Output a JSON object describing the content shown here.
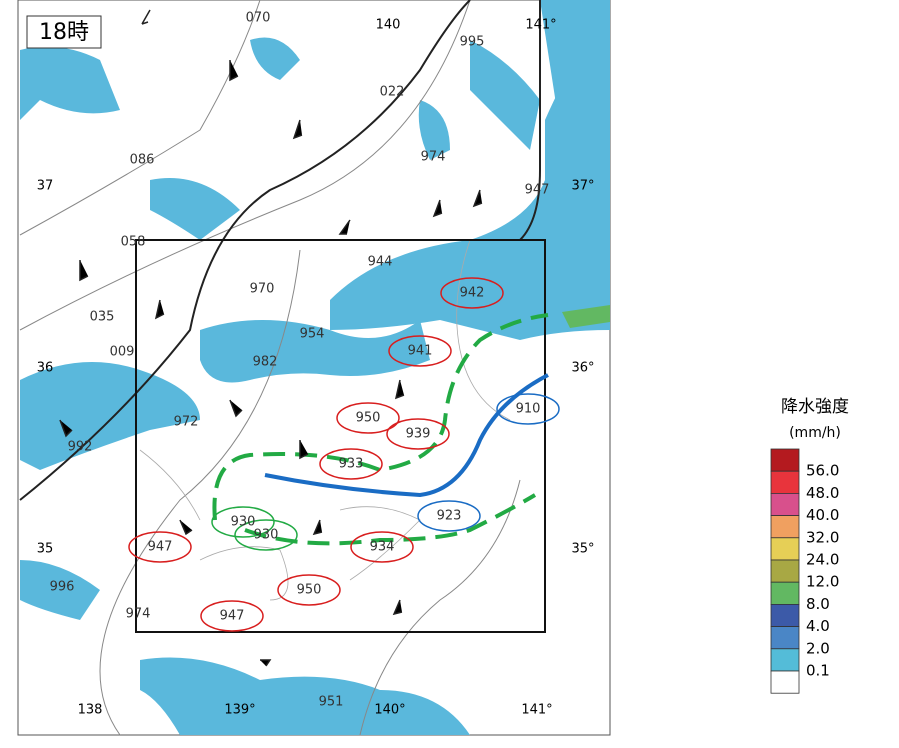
{
  "map": {
    "time_label": "18時",
    "lon_labels_bottom": [
      "138",
      "139°",
      "140°",
      "141°"
    ],
    "lon_labels_top": [
      "140",
      "141°"
    ],
    "lat_labels_right": [
      "37°",
      "36°",
      "35°"
    ],
    "lat_labels_left": [
      "37",
      "36",
      "35"
    ],
    "stations": [
      "070",
      "995",
      "022",
      "974",
      "086",
      "947",
      "058",
      "944",
      "970",
      "942",
      "035",
      "009",
      "954",
      "941",
      "982",
      "910",
      "972",
      "950",
      "939",
      "992",
      "933",
      "923",
      "930",
      "930",
      "947",
      "934",
      "996",
      "950",
      "974",
      "947",
      "951"
    ],
    "legend": {
      "title": "降水強度",
      "unit": "(mm/h)",
      "colors": [
        "#b41a1f",
        "#e8343c",
        "#d8508c",
        "#f0a060",
        "#e6cf56",
        "#a8a844",
        "#62b862",
        "#3c5aa8",
        "#4a86c6",
        "#54bcd8",
        "#ffffff"
      ],
      "labels": [
        "56.0",
        "48.0",
        "40.0",
        "32.0",
        "24.0",
        "12.0",
        "8.0",
        "4.0",
        "2.0",
        "0.1"
      ]
    }
  }
}
